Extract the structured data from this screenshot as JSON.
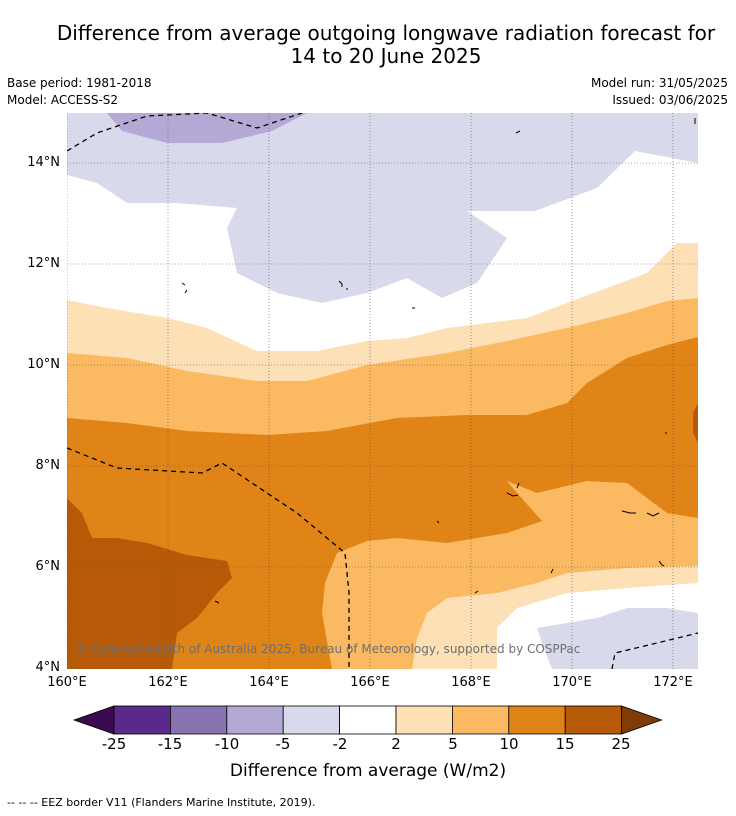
{
  "title_line1": "Difference from average outgoing longwave radiation forecast for",
  "title_line2": "14 to 20 June 2025",
  "base_period": "Base period: 1981-2018",
  "model": "Model: ACCESS-S2",
  "model_run": "Model run: 31/05/2025",
  "issued": "Issued: 03/06/2025",
  "copyright": "© Commonwealth of Australia 2025, Bureau of Meteorology, supported by COSPPac",
  "lat_labels": [
    "14°N",
    "12°N",
    "10°N",
    "8°N",
    "6°N",
    "4°N"
  ],
  "lon_labels": [
    "160°E",
    "162°E",
    "164°E",
    "166°E",
    "168°E",
    "170°E",
    "172°E"
  ],
  "colorbar": {
    "ticks": [
      "-25",
      "-15",
      "-10",
      "-5",
      "-2",
      "2",
      "5",
      "10",
      "15",
      "25"
    ],
    "colors": [
      "#3b0a4f",
      "#5a2a8a",
      "#8a74b0",
      "#b3a9d4",
      "#d9d9ec",
      "#ffffff",
      "#fde0b5",
      "#fbb962",
      "#e08418",
      "#b65a08",
      "#7f3c05"
    ],
    "label": "Difference from average (W/m2)"
  },
  "legend_note": "--  --  -- EEZ border V11 (Flanders Marine Institute, 2019)."
}
